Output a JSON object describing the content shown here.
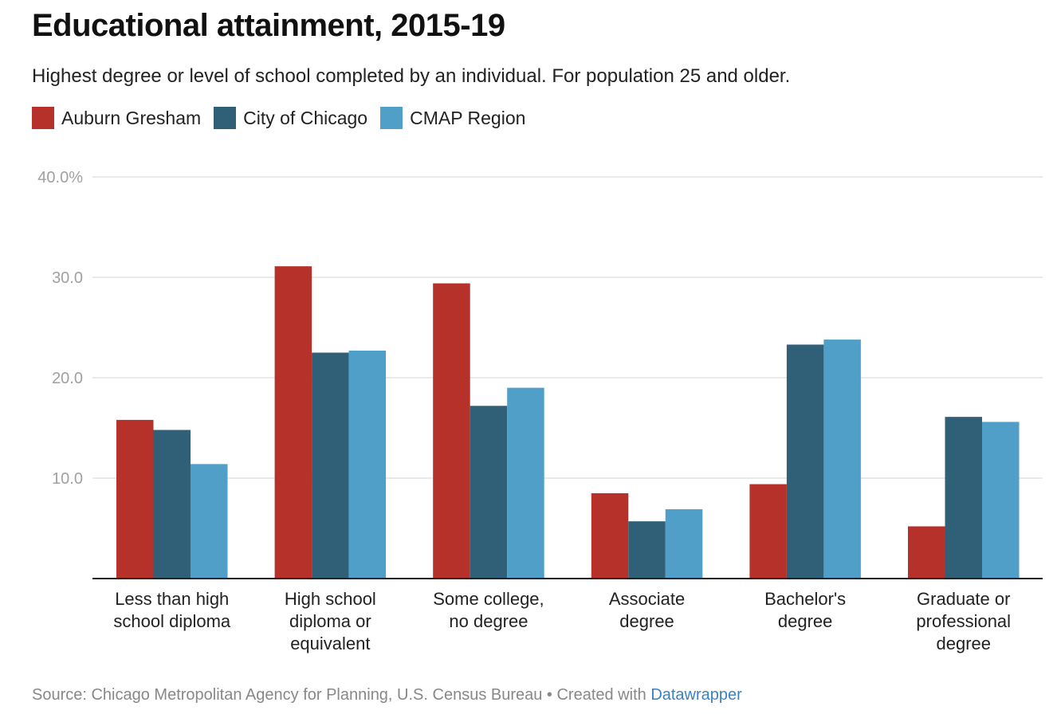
{
  "header": {
    "title": "Educational attainment, 2015-19",
    "subtitle": "Highest degree or level of school completed by an individual. For population 25 and older."
  },
  "footer": {
    "source": "Source: Chicago Metropolitan Agency for Planning, U.S. Census Bureau • Created with ",
    "link": "Datawrapper"
  },
  "chart_data": {
    "type": "bar",
    "title": "Educational attainment, 2015-19",
    "subtitle": "Highest degree or level of school completed by an individual. For population 25 and older.",
    "xlabel": "",
    "ylabel": "",
    "ylim": [
      0,
      40
    ],
    "y_ticks": [
      {
        "value": 10,
        "label": "10.0"
      },
      {
        "value": 20,
        "label": "20.0"
      },
      {
        "value": 30,
        "label": "30.0"
      },
      {
        "value": 40,
        "label": "40.0%"
      }
    ],
    "grid": true,
    "legend_position": "top-left",
    "categories": [
      [
        "Less than high",
        "school diploma"
      ],
      [
        "High school",
        "diploma or",
        "equivalent"
      ],
      [
        "Some college,",
        "no degree"
      ],
      [
        "Associate",
        "degree"
      ],
      [
        "Bachelor's",
        "degree"
      ],
      [
        "Graduate or",
        "professional",
        "degree"
      ]
    ],
    "series": [
      {
        "name": "Auburn Gresham",
        "color": "#b5312a",
        "values": [
          15.8,
          31.1,
          29.4,
          8.5,
          9.4,
          5.2
        ]
      },
      {
        "name": "City of Chicago",
        "color": "#305f78",
        "values": [
          14.8,
          22.5,
          17.2,
          5.7,
          23.3,
          16.1
        ]
      },
      {
        "name": "CMAP Region",
        "color": "#4f9fc9",
        "values": [
          11.4,
          22.7,
          19.0,
          6.9,
          23.8,
          15.6
        ]
      }
    ]
  }
}
